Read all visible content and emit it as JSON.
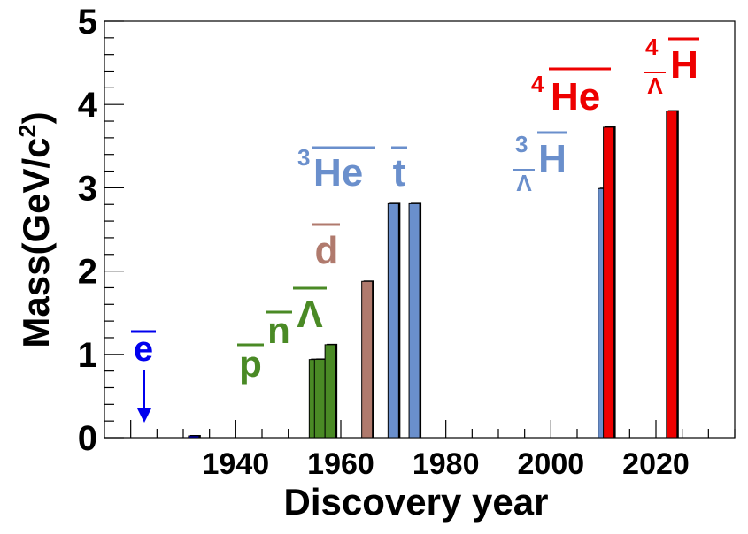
{
  "chart_data": {
    "type": "bar",
    "xlabel": "Discovery year",
    "ylabel": "Mass(GeV/c",
    "ylabel_sup": "2",
    "ylabel_close": ")",
    "xlim": [
      1915,
      2035
    ],
    "ylim": [
      0,
      5
    ],
    "x_ticks": [
      "1940",
      "1960",
      "1980",
      "2000",
      "2020"
    ],
    "y_ticks": [
      "0",
      "1",
      "2",
      "3",
      "4",
      "5"
    ],
    "colors": {
      "electron": "#0000ee",
      "nucleon": "#4a8a25",
      "light": "#6a8fcc",
      "deuteron": "#b07a6d",
      "antialpha": "#ee0000"
    },
    "bars": [
      {
        "year": 1932,
        "mass": 0.000511,
        "color": "#0000ee"
      },
      {
        "year": 1955,
        "mass": 0.938,
        "color": "#4a8a25"
      },
      {
        "year": 1956,
        "mass": 0.94,
        "color": "#4a8a25"
      },
      {
        "year": 1958,
        "mass": 1.116,
        "color": "#4a8a25"
      },
      {
        "year": 1965,
        "mass": 1.876,
        "color": "#b07a6d"
      },
      {
        "year": 1970,
        "mass": 2.809,
        "color": "#6a8fcc"
      },
      {
        "year": 1974,
        "mass": 2.809,
        "color": "#6a8fcc"
      },
      {
        "year": 2010,
        "mass": 2.991,
        "color": "#6a8fcc"
      },
      {
        "year": 2011,
        "mass": 3.727,
        "color": "#ee0000"
      },
      {
        "year": 2023,
        "mass": 3.922,
        "color": "#ee0000"
      }
    ],
    "labels": {
      "e": "e",
      "p": "p",
      "n": "n",
      "lambda": "Λ",
      "d": "d",
      "he3_sup": "3",
      "he3": "He",
      "t": "t",
      "h3l_sup": "3",
      "h3l_sub": "Λ",
      "h3l": "H",
      "he4_sup": "4",
      "he4": "He",
      "h4l_sup": "4",
      "h4l_sub": "Λ",
      "h4l": "H"
    }
  }
}
